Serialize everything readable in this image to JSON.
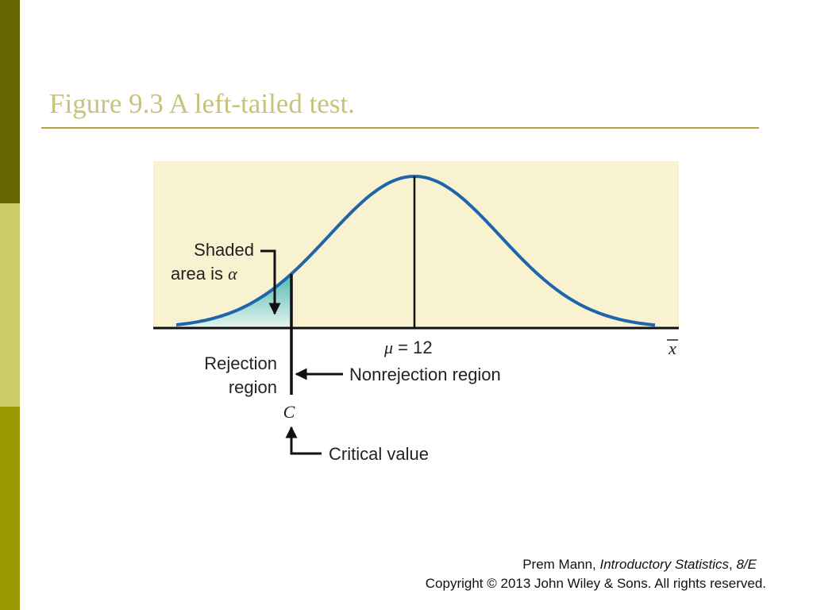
{
  "title": "Figure 9.3 A left-tailed test.",
  "figure": {
    "shaded_line1": "Shaded",
    "shaded_line2": "area is",
    "alpha": "α",
    "mean_symbol": "μ",
    "mean_value": "= 12",
    "x_axis_symbol": "x",
    "rejection_line1": "Rejection",
    "rejection_line2": "region",
    "nonrejection": "Nonrejection region",
    "critical_symbol": "C",
    "critical_label": "Critical value"
  },
  "footer": {
    "line1": [
      {
        "text": "Prem Mann, "
      },
      {
        "text": "Introductory Statistics",
        "italic": true
      },
      {
        "text": ", "
      },
      {
        "text": "8/E",
        "italic": true
      }
    ],
    "line2": "Copyright © 2013 John Wiley & Sons. All rights reserved."
  }
}
